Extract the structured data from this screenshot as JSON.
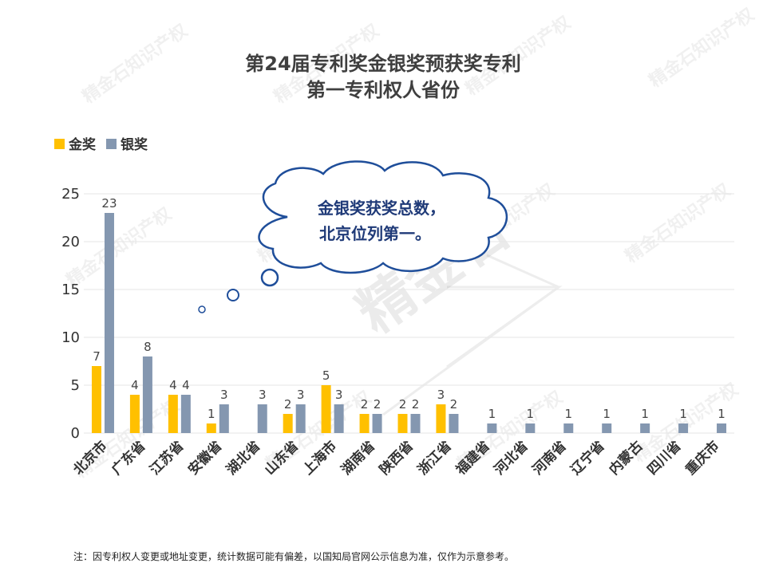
{
  "chart_data": {
    "type": "bar",
    "title": [
      "第24届专利奖金银奖预获奖专利",
      "第一专利权人省份"
    ],
    "categories": [
      "北京市",
      "广东省",
      "江苏省",
      "安徽省",
      "湖北省",
      "山东省",
      "上海市",
      "湖南省",
      "陕西省",
      "浙江省",
      "福建省",
      "河北省",
      "河南省",
      "辽宁省",
      "内蒙古",
      "四川省",
      "重庆市"
    ],
    "series": [
      {
        "name": "金奖",
        "color": "#ffc000",
        "values": [
          7,
          4,
          4,
          1,
          null,
          2,
          5,
          2,
          2,
          3,
          null,
          null,
          null,
          null,
          null,
          null,
          null
        ]
      },
      {
        "name": "银奖",
        "color": "#8497b0",
        "values": [
          23,
          8,
          4,
          3,
          3,
          3,
          3,
          2,
          2,
          2,
          1,
          1,
          1,
          1,
          1,
          1,
          1
        ]
      }
    ],
    "yticks": [
      0,
      5,
      10,
      15,
      20,
      25
    ],
    "ylim": [
      0,
      25
    ],
    "grid": true,
    "legend_position": "top-left",
    "annotation": [
      "金银奖获奖总数，",
      "北京位列第一。"
    ],
    "footnote": "注：因专利权人变更或地址变更，统计数据可能有偏差，以国知局官网公示信息为准，仅作为示意参考。",
    "watermark": "精金石知识产权"
  }
}
